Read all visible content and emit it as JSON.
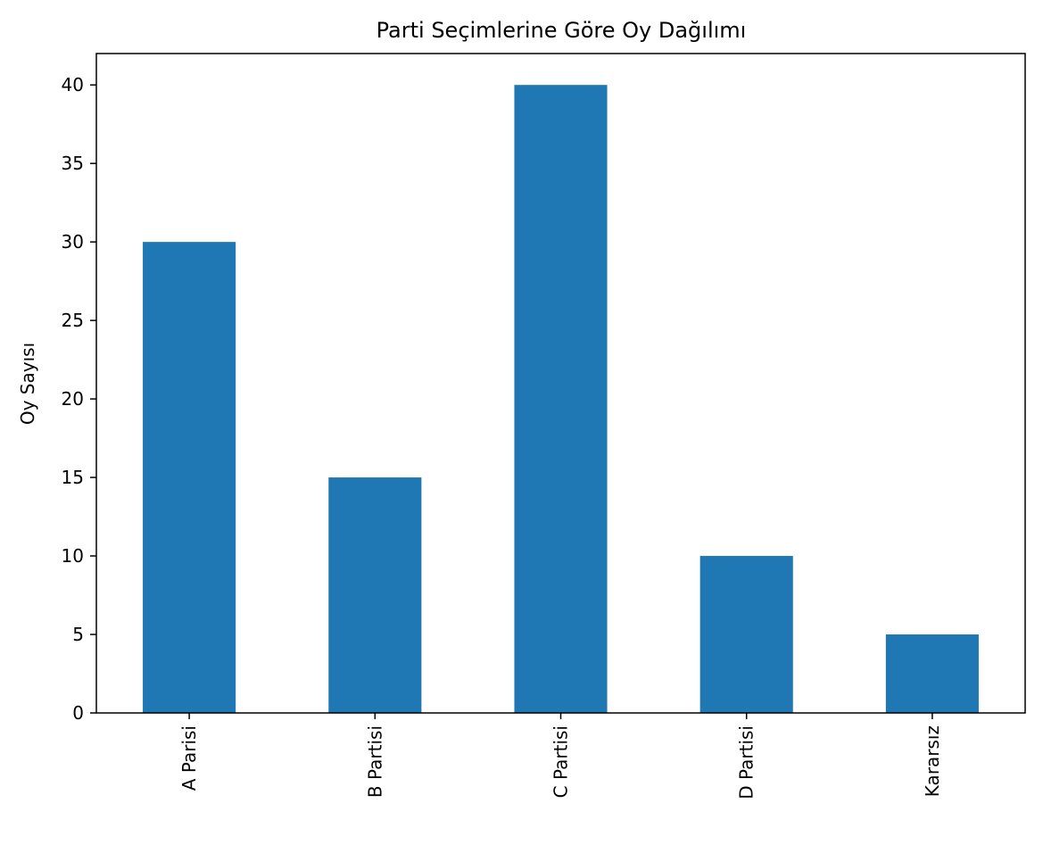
{
  "chart_data": {
    "type": "bar",
    "title": "Parti Seçimlerine Göre Oy Dağılımı",
    "xlabel": "",
    "ylabel": "Oy Sayısı",
    "categories": [
      "A Parisi",
      "B Partisi",
      "C Partisi",
      "D Partisi",
      "Kararsız"
    ],
    "values": [
      30,
      15,
      40,
      10,
      5
    ],
    "ylim": [
      0,
      42
    ],
    "yticks": [
      0,
      5,
      10,
      15,
      20,
      25,
      30,
      35,
      40
    ],
    "bar_color": "#1f77b4",
    "grid": false,
    "legend": "none"
  }
}
